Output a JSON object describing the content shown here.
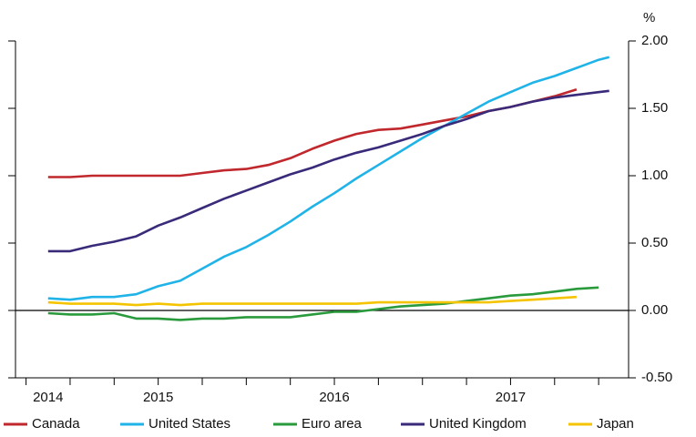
{
  "chart_data": {
    "type": "line",
    "y_unit": "%",
    "x": [
      2014.875,
      2015.0,
      2015.125,
      2015.25,
      2015.375,
      2015.5,
      2015.625,
      2015.75,
      2015.875,
      2016.0,
      2016.125,
      2016.25,
      2016.375,
      2016.5,
      2016.625,
      2016.75,
      2016.875,
      2017.0,
      2017.125,
      2017.25,
      2017.375,
      2017.5,
      2017.625,
      2017.75,
      2017.875,
      2018.0,
      2018.06
    ],
    "series": [
      {
        "name": "Canada",
        "color": "#c0282d",
        "values": [
          0.99,
          0.99,
          1.0,
          1.0,
          1.0,
          1.0,
          1.0,
          1.02,
          1.04,
          1.05,
          1.08,
          1.13,
          1.2,
          1.26,
          1.31,
          1.34,
          1.35,
          1.38,
          1.41,
          1.44,
          1.48,
          1.51,
          1.55,
          1.59,
          1.64,
          null,
          null
        ]
      },
      {
        "name": "United States",
        "color": "#1fb3e8",
        "values": [
          0.09,
          0.08,
          0.1,
          0.1,
          0.12,
          0.18,
          0.22,
          0.31,
          0.4,
          0.47,
          0.56,
          0.66,
          0.77,
          0.87,
          0.98,
          1.08,
          1.18,
          1.28,
          1.37,
          1.46,
          1.55,
          1.62,
          1.69,
          1.74,
          1.8,
          1.86,
          1.88
        ]
      },
      {
        "name": "Euro area",
        "color": "#2a9b3c",
        "values": [
          -0.02,
          -0.03,
          -0.03,
          -0.02,
          -0.06,
          -0.06,
          -0.07,
          -0.06,
          -0.06,
          -0.05,
          -0.05,
          -0.05,
          -0.03,
          -0.01,
          -0.01,
          0.01,
          0.03,
          0.04,
          0.05,
          0.07,
          0.09,
          0.11,
          0.12,
          0.14,
          0.16,
          0.17,
          null
        ]
      },
      {
        "name": "United Kingdom",
        "color": "#3a2a7a",
        "values": [
          0.44,
          0.44,
          0.48,
          0.51,
          0.55,
          0.63,
          0.69,
          0.76,
          0.83,
          0.89,
          0.95,
          1.01,
          1.06,
          1.12,
          1.17,
          1.21,
          1.26,
          1.31,
          1.37,
          1.42,
          1.48,
          1.51,
          1.55,
          1.58,
          1.6,
          1.62,
          1.63
        ]
      },
      {
        "name": "Japan",
        "color": "#f5c400",
        "values": [
          0.06,
          0.05,
          0.05,
          0.05,
          0.04,
          0.05,
          0.04,
          0.05,
          0.05,
          0.05,
          0.05,
          0.05,
          0.05,
          0.05,
          0.05,
          0.06,
          0.06,
          0.06,
          0.06,
          0.06,
          0.06,
          0.07,
          0.08,
          0.09,
          0.1,
          null,
          null
        ]
      }
    ],
    "xlim": [
      2014.69,
      2018.17
    ],
    "xticks": [
      {
        "value": 2014.875,
        "label": "2014"
      },
      {
        "value": 2015.5,
        "label": "2015"
      },
      {
        "value": 2016.5,
        "label": "2016"
      },
      {
        "value": 2017.5,
        "label": "2017"
      }
    ],
    "x_minor_ticks": [
      2014.75,
      2015.0,
      2015.25,
      2015.5,
      2015.75,
      2016.0,
      2016.25,
      2016.5,
      2016.75,
      2017.0,
      2017.25,
      2017.5,
      2017.75,
      2018.0
    ],
    "ylim": [
      -0.5,
      2.0
    ],
    "yticks": [
      {
        "value": 2.0,
        "label": "2.00"
      },
      {
        "value": 1.5,
        "label": "1.50"
      },
      {
        "value": 1.0,
        "label": "1.00"
      },
      {
        "value": 0.5,
        "label": "0.50"
      },
      {
        "value": 0.0,
        "label": "0.00"
      },
      {
        "value": -0.5,
        "label": "-0.50"
      }
    ],
    "zero_line": true,
    "legend": "bottom"
  }
}
